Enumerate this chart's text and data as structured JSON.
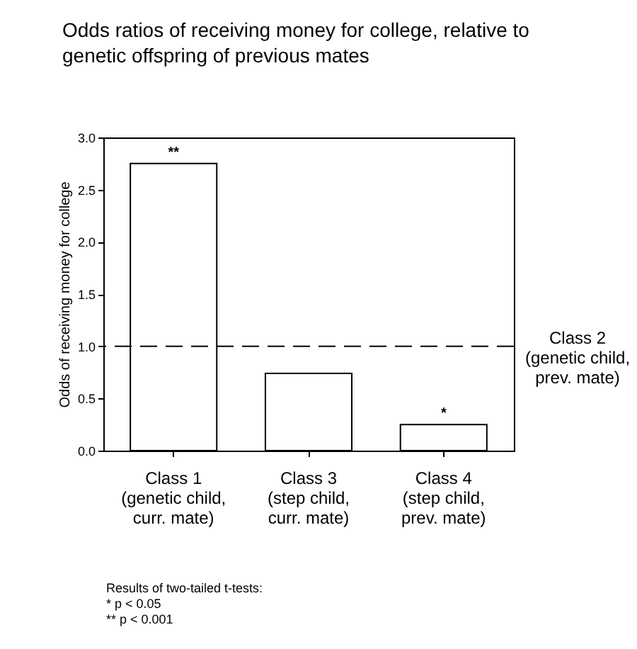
{
  "chart_data": {
    "type": "bar",
    "title": "Odds ratios of receiving money for college, relative to genetic offspring of previous mates",
    "ylabel": "Odds of receiving money for college",
    "categories": [
      "Class 1\n(genetic child,\ncurr. mate)",
      "Class 3\n(step child,\ncurr. mate)",
      "Class 4\n(step child,\nprev. mate)"
    ],
    "values": [
      2.75,
      0.74,
      0.25
    ],
    "color": "#ffffff",
    "ylim": [
      0,
      3
    ],
    "yticks": [
      {
        "value": 0,
        "label": "0.0"
      },
      {
        "value": 0.5,
        "label": "0.5"
      },
      {
        "value": 1,
        "label": "1.0"
      },
      {
        "value": 1.5,
        "label": "1.5"
      },
      {
        "value": 2,
        "label": "2.0"
      },
      {
        "value": 2.5,
        "label": "2.5"
      },
      {
        "value": 3,
        "label": "3.0"
      }
    ],
    "ref_lines": [
      {
        "axis": "y",
        "value": 1,
        "label": "Class 2\n(genetic child,\nprev. mate)",
        "line_style": "dashed",
        "color": "#000000"
      }
    ],
    "annotations": [
      {
        "text": "**",
        "x": "Class 1\n(genetic child,\ncurr. mate)",
        "y": 2.75
      },
      {
        "text": "*",
        "x": "Class 4\n(step child,\nprev. mate)",
        "y": 0.25
      },
      "Results of two-tailed t-tests:\n*  p < 0.05\n** p < 0.001"
    ],
    "grid": false
  }
}
